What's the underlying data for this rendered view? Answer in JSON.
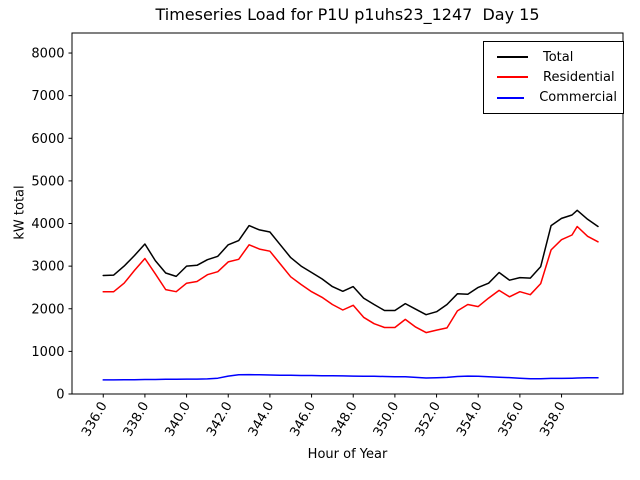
{
  "title": "Timeseries Load for P1U p1uhs23_1247  Day 15",
  "chart_data": {
    "type": "line",
    "title": "Timeseries Load for P1U p1uhs23_1247  Day 15",
    "xlabel": "Hour of Year",
    "ylabel": "kW total",
    "xlim": [
      334.5,
      360.95
    ],
    "ylim": [
      0,
      8470
    ],
    "grid": false,
    "legend_position": "upper right",
    "xtick_values": [
      336,
      338,
      340,
      342,
      344,
      346,
      348,
      350,
      352,
      354,
      356,
      358
    ],
    "xtick_labels": [
      "336.0",
      "338.0",
      "340.0",
      "342.0",
      "344.0",
      "346.0",
      "348.0",
      "350.0",
      "352.0",
      "354.0",
      "356.0",
      "358.0"
    ],
    "ytick_values": [
      0,
      1000,
      2000,
      3000,
      4000,
      5000,
      6000,
      7000,
      8000
    ],
    "ytick_labels": [
      "0",
      "1000",
      "2000",
      "3000",
      "4000",
      "5000",
      "6000",
      "7000",
      "8000"
    ],
    "x": [
      336.0,
      336.5,
      337.0,
      337.5,
      338.0,
      338.5,
      339.0,
      339.5,
      340.0,
      340.5,
      341.0,
      341.5,
      342.0,
      342.5,
      343.0,
      343.5,
      344.0,
      344.5,
      345.0,
      345.5,
      346.0,
      346.5,
      347.0,
      347.5,
      348.0,
      348.5,
      349.0,
      349.5,
      350.0,
      350.5,
      351.0,
      351.5,
      352.0,
      352.5,
      353.0,
      353.5,
      354.0,
      354.5,
      355.0,
      355.5,
      356.0,
      356.5,
      357.0,
      357.5,
      358.0,
      358.5,
      358.75,
      359.25,
      359.75
    ],
    "series": [
      {
        "name": "Total",
        "color": "#000000",
        "values": [
          2780,
          2790,
          3000,
          3250,
          3520,
          3130,
          2840,
          2760,
          3000,
          3020,
          3150,
          3230,
          3500,
          3600,
          3950,
          3850,
          3800,
          3500,
          3200,
          3000,
          2850,
          2700,
          2520,
          2410,
          2520,
          2250,
          2100,
          1960,
          1960,
          2120,
          1990,
          1860,
          1930,
          2100,
          2350,
          2340,
          2500,
          2600,
          2850,
          2670,
          2730,
          2720,
          2990,
          3950,
          4120,
          4200,
          4310,
          4100,
          3930
        ]
      },
      {
        "name": "Residential",
        "color": "#ff0000",
        "values": [
          2400,
          2400,
          2600,
          2900,
          3180,
          2820,
          2450,
          2400,
          2600,
          2640,
          2800,
          2870,
          3100,
          3160,
          3500,
          3400,
          3350,
          3050,
          2750,
          2570,
          2400,
          2270,
          2100,
          1970,
          2080,
          1800,
          1650,
          1560,
          1560,
          1750,
          1570,
          1440,
          1500,
          1550,
          1950,
          2100,
          2050,
          2250,
          2430,
          2280,
          2400,
          2330,
          2590,
          3380,
          3620,
          3730,
          3930,
          3700,
          3570
        ]
      },
      {
        "name": "Commercial",
        "color": "#0000ff",
        "values": [
          330,
          330,
          335,
          335,
          340,
          340,
          345,
          345,
          350,
          350,
          355,
          370,
          420,
          450,
          455,
          450,
          445,
          440,
          440,
          435,
          435,
          430,
          430,
          425,
          420,
          415,
          415,
          410,
          405,
          405,
          390,
          375,
          380,
          390,
          410,
          420,
          415,
          405,
          395,
          385,
          370,
          360,
          360,
          365,
          365,
          370,
          375,
          380,
          380
        ]
      }
    ]
  }
}
